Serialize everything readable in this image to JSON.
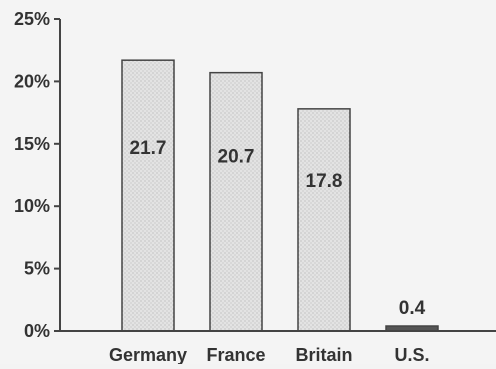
{
  "chart_data": {
    "type": "bar",
    "categories": [
      "Germany",
      "France",
      "Britain",
      "U.S."
    ],
    "values": [
      21.7,
      20.7,
      17.8,
      0.4
    ],
    "value_labels": [
      "21.7",
      "20.7",
      "17.8",
      "0.4"
    ],
    "ylim": [
      0,
      25
    ],
    "yticks": [
      0,
      5,
      10,
      15,
      20,
      25
    ],
    "ytick_labels": [
      "0%",
      "5%",
      "10%",
      "15%",
      "20%",
      "25%"
    ],
    "grid": false,
    "legend": "none",
    "colors": {
      "bar_fill": "#dedede",
      "bar_stroke": "#444444",
      "axis": "#444444",
      "text": "#333333"
    }
  }
}
